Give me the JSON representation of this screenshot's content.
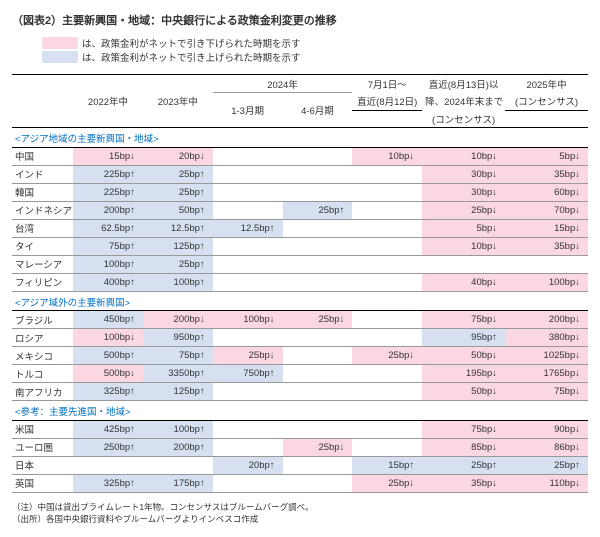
{
  "title": "（図表2）主要新興国・地域：中央銀行による政策金利変更の推移",
  "legend": {
    "down": {
      "color": "#fbd7e2",
      "text": "は、政策金利がネットで引き下げられた時期を示す"
    },
    "up": {
      "color": "#d6e0f0",
      "text": "は、政策金利がネットで引き上げられた時期を示す"
    }
  },
  "columns": {
    "c1": "2022年中",
    "c2": "2023年中",
    "c2024": "2024年",
    "c3": "1-3月期",
    "c4": "4-6月期",
    "c5a": "7月1日～",
    "c5b": "直近(8月12日)",
    "c6a": "直近(8月13日)以",
    "c6b": "降、2024年末まで",
    "c6c": "(コンセンサス)",
    "c7a": "2025年中",
    "c7b": "(コンセンサス)"
  },
  "sections": [
    {
      "label": "<アジア地域の主要新興国・地域>",
      "rows": [
        {
          "name": "中国",
          "c": [
            [
              "15bp↓",
              "down"
            ],
            [
              "20bp↓",
              "down"
            ],
            [
              "",
              ""
            ],
            [
              "",
              ""
            ],
            [
              "10bp↓",
              "down"
            ],
            [
              "10bp↓",
              "down"
            ],
            [
              "5bp↓",
              "down"
            ]
          ]
        },
        {
          "name": "インド",
          "c": [
            [
              "225bp↑",
              "up"
            ],
            [
              "25bp↑",
              "up"
            ],
            [
              "",
              ""
            ],
            [
              "",
              ""
            ],
            [
              "",
              ""
            ],
            [
              "30bp↓",
              "down"
            ],
            [
              "35bp↓",
              "down"
            ]
          ]
        },
        {
          "name": "韓国",
          "c": [
            [
              "225bp↑",
              "up"
            ],
            [
              "25bp↑",
              "up"
            ],
            [
              "",
              ""
            ],
            [
              "",
              ""
            ],
            [
              "",
              ""
            ],
            [
              "30bp↓",
              "down"
            ],
            [
              "60bp↓",
              "down"
            ]
          ]
        },
        {
          "name": "インドネシア",
          "c": [
            [
              "200bp↑",
              "up"
            ],
            [
              "50bp↑",
              "up"
            ],
            [
              "",
              ""
            ],
            [
              "25bp↑",
              "up"
            ],
            [
              "",
              ""
            ],
            [
              "25bp↓",
              "down"
            ],
            [
              "70bp↓",
              "down"
            ]
          ]
        },
        {
          "name": "台湾",
          "c": [
            [
              "62.5bp↑",
              "up"
            ],
            [
              "12.5bp↑",
              "up"
            ],
            [
              "12.5bp↑",
              "up"
            ],
            [
              "",
              ""
            ],
            [
              "",
              ""
            ],
            [
              "5bp↓",
              "down"
            ],
            [
              "15bp↓",
              "down"
            ]
          ]
        },
        {
          "name": "タイ",
          "c": [
            [
              "75bp↑",
              "up"
            ],
            [
              "125bp↑",
              "up"
            ],
            [
              "",
              ""
            ],
            [
              "",
              ""
            ],
            [
              "",
              ""
            ],
            [
              "10bp↓",
              "down"
            ],
            [
              "35bp↓",
              "down"
            ]
          ]
        },
        {
          "name": "マレーシア",
          "c": [
            [
              "100bp↑",
              "up"
            ],
            [
              "25bp↑",
              "up"
            ],
            [
              "",
              ""
            ],
            [
              "",
              ""
            ],
            [
              "",
              ""
            ],
            [
              "",
              ""
            ],
            [
              "",
              ""
            ]
          ]
        },
        {
          "name": "フィリピン",
          "c": [
            [
              "400bp↑",
              "up"
            ],
            [
              "100bp↑",
              "up"
            ],
            [
              "",
              ""
            ],
            [
              "",
              ""
            ],
            [
              "",
              ""
            ],
            [
              "40bp↓",
              "down"
            ],
            [
              "100bp↓",
              "down"
            ]
          ]
        }
      ]
    },
    {
      "label": "<アジア域外の主要新興国>",
      "rows": [
        {
          "name": "ブラジル",
          "c": [
            [
              "450bp↑",
              "up"
            ],
            [
              "200bp↓",
              "down"
            ],
            [
              "100bp↓",
              "down"
            ],
            [
              "25bp↓",
              "down"
            ],
            [
              "",
              ""
            ],
            [
              "75bp↓",
              "down"
            ],
            [
              "200bp↓",
              "down"
            ]
          ]
        },
        {
          "name": "ロシア",
          "c": [
            [
              "100bp↓",
              "down"
            ],
            [
              "950bp↑",
              "up"
            ],
            [
              "",
              ""
            ],
            [
              "",
              ""
            ],
            [
              "",
              ""
            ],
            [
              "95bp↑",
              "up"
            ],
            [
              "380bp↓",
              "down"
            ]
          ]
        },
        {
          "name": "メキシコ",
          "c": [
            [
              "500bp↑",
              "up"
            ],
            [
              "75bp↑",
              "up"
            ],
            [
              "25bp↓",
              "down"
            ],
            [
              "",
              ""
            ],
            [
              "25bp↓",
              "down"
            ],
            [
              "50bp↓",
              "down"
            ],
            [
              "1025bp↓",
              "down"
            ]
          ]
        },
        {
          "name": "トルコ",
          "c": [
            [
              "500bp↓",
              "down"
            ],
            [
              "3350bp↑",
              "up"
            ],
            [
              "750bp↑",
              "up"
            ],
            [
              "",
              ""
            ],
            [
              "",
              ""
            ],
            [
              "195bp↓",
              "down"
            ],
            [
              "1765bp↓",
              "down"
            ]
          ]
        },
        {
          "name": "南アフリカ",
          "c": [
            [
              "325bp↑",
              "up"
            ],
            [
              "125bp↑",
              "up"
            ],
            [
              "",
              ""
            ],
            [
              "",
              ""
            ],
            [
              "",
              ""
            ],
            [
              "50bp↓",
              "down"
            ],
            [
              "75bp↓",
              "down"
            ]
          ]
        }
      ]
    },
    {
      "label": "<参考：主要先進国・地域>",
      "rows": [
        {
          "name": "米国",
          "c": [
            [
              "425bp↑",
              "up"
            ],
            [
              "100bp↑",
              "up"
            ],
            [
              "",
              ""
            ],
            [
              "",
              ""
            ],
            [
              "",
              ""
            ],
            [
              "75bp↓",
              "down"
            ],
            [
              "90bp↓",
              "down"
            ]
          ]
        },
        {
          "name": "ユーロ圏",
          "c": [
            [
              "250bp↑",
              "up"
            ],
            [
              "200bp↑",
              "up"
            ],
            [
              "",
              ""
            ],
            [
              "25bp↓",
              "down"
            ],
            [
              "",
              ""
            ],
            [
              "85bp↓",
              "down"
            ],
            [
              "86bp↓",
              "down"
            ]
          ]
        },
        {
          "name": "日本",
          "c": [
            [
              "",
              ""
            ],
            [
              "",
              ""
            ],
            [
              "20bp↑",
              "up"
            ],
            [
              "",
              ""
            ],
            [
              "15bp↑",
              "up"
            ],
            [
              "25bp↑",
              "up"
            ],
            [
              "25bp↑",
              "up"
            ]
          ]
        },
        {
          "name": "英国",
          "c": [
            [
              "325bp↑",
              "up"
            ],
            [
              "175bp↑",
              "up"
            ],
            [
              "",
              ""
            ],
            [
              "",
              ""
            ],
            [
              "25bp↓",
              "down"
            ],
            [
              "35bp↓",
              "down"
            ],
            [
              "110bp↓",
              "down"
            ]
          ]
        }
      ]
    }
  ],
  "notes": {
    "n1": "（注）中国は貸出プライムレート1年物。コンセンサスはブルームバーグ調べ。",
    "n2": "（出所）各国中央銀行資料やブルームバーグよりインベスコ作成"
  },
  "colors": {
    "down": "#fbd7e2",
    "up": "#d6e0f0"
  }
}
